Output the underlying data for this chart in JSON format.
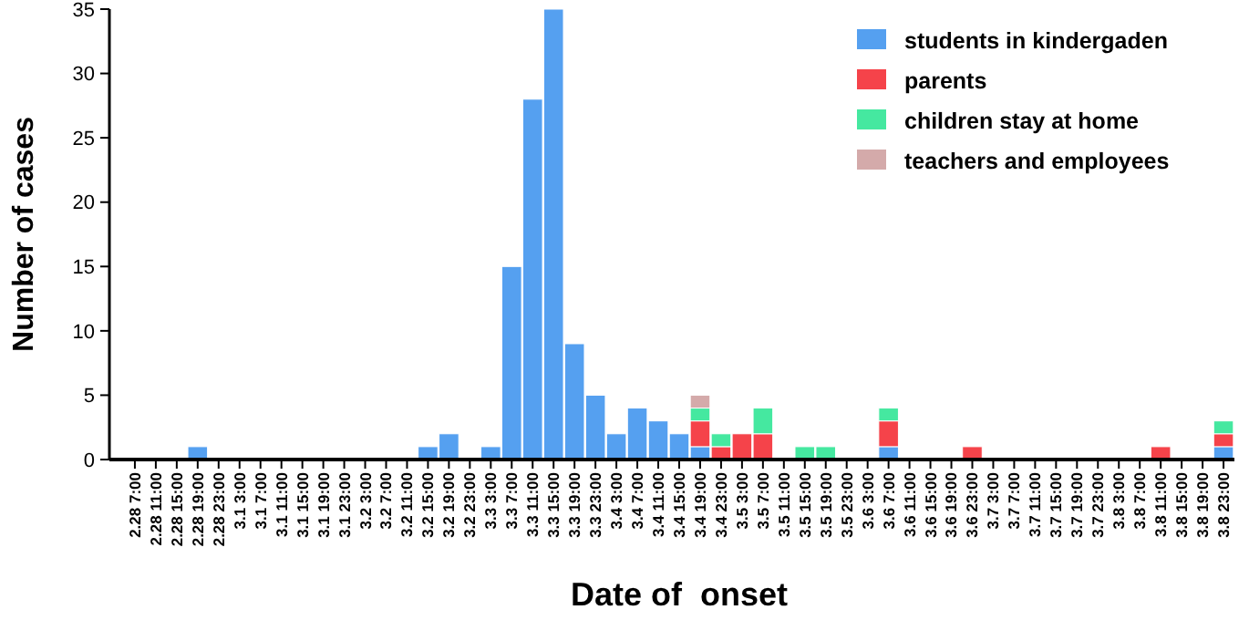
{
  "chart_data": {
    "type": "bar",
    "stacked": true,
    "xlabel": "Date of  onset",
    "ylabel": "Number of cases",
    "categories": [
      "2.28 7:00",
      "2.28 11:00",
      "2.28 15:00",
      "2.28 19:00",
      "2.28 23:00",
      "3.1 3:00",
      "3.1 7:00",
      "3.1 11:00",
      "3.1 15:00",
      "3.1 19:00",
      "3.1 23:00",
      "3.2 3:00",
      "3.2 7:00",
      "3.2 11:00",
      "3.2 15:00",
      "3.2 19:00",
      "3.2 23:00",
      "3.3 3:00",
      "3.3 7:00",
      "3.3 11:00",
      "3.3 15:00",
      "3.3 19:00",
      "3.3 23:00",
      "3.4 3:00",
      "3.4 7:00",
      "3.4 11:00",
      "3.4 15:00",
      "3.4 19:00",
      "3.4 23:00",
      "3.5 3:00",
      "3.5 7:00",
      "3.5 11:00",
      "3.5 15:00",
      "3.5 19:00",
      "3.5 23:00",
      "3.6 3:00",
      "3.6 7:00",
      "3.6 11:00",
      "3.6 15:00",
      "3.6 19:00",
      "3.6 23:00",
      "3.7 3:00",
      "3.7 7:00",
      "3.7 11:00",
      "3.7 15:00",
      "3.7 19:00",
      "3.7 23:00",
      "3.8 3:00",
      "3.8 7:00",
      "3.8 11:00",
      "3.8 15:00",
      "3.8 19:00",
      "3.8 23:00"
    ],
    "series": [
      {
        "name": "students in kindergaden",
        "color": "#55a0f0",
        "values": [
          0,
          0,
          0,
          1,
          0,
          0,
          0,
          0,
          0,
          0,
          0,
          0,
          0,
          0,
          1,
          2,
          0,
          1,
          15,
          28,
          35,
          9,
          5,
          2,
          4,
          3,
          2,
          1,
          0,
          0,
          0,
          0,
          0,
          0,
          0,
          0,
          1,
          0,
          0,
          0,
          0,
          0,
          0,
          0,
          0,
          0,
          0,
          0,
          0,
          0,
          0,
          0,
          1
        ]
      },
      {
        "name": "parents",
        "color": "#f5434a",
        "values": [
          0,
          0,
          0,
          0,
          0,
          0,
          0,
          0,
          0,
          0,
          0,
          0,
          0,
          0,
          0,
          0,
          0,
          0,
          0,
          0,
          0,
          0,
          0,
          0,
          0,
          0,
          0,
          2,
          1,
          2,
          2,
          0,
          0,
          0,
          0,
          0,
          2,
          0,
          0,
          0,
          1,
          0,
          0,
          0,
          0,
          0,
          0,
          0,
          0,
          1,
          0,
          0,
          1
        ]
      },
      {
        "name": "children stay at home",
        "color": "#45e8a0",
        "values": [
          0,
          0,
          0,
          0,
          0,
          0,
          0,
          0,
          0,
          0,
          0,
          0,
          0,
          0,
          0,
          0,
          0,
          0,
          0,
          0,
          0,
          0,
          0,
          0,
          0,
          0,
          0,
          1,
          1,
          0,
          2,
          0,
          1,
          1,
          0,
          0,
          1,
          0,
          0,
          0,
          0,
          0,
          0,
          0,
          0,
          0,
          0,
          0,
          0,
          0,
          0,
          0,
          1
        ]
      },
      {
        "name": "teachers and employees",
        "color": "#d4aaaa",
        "values": [
          0,
          0,
          0,
          0,
          0,
          0,
          0,
          0,
          0,
          0,
          0,
          0,
          0,
          0,
          0,
          0,
          0,
          0,
          0,
          0,
          0,
          0,
          0,
          0,
          0,
          0,
          0,
          1,
          0,
          0,
          0,
          0,
          0,
          0,
          0,
          0,
          0,
          0,
          0,
          0,
          0,
          0,
          0,
          0,
          0,
          0,
          0,
          0,
          0,
          0,
          0,
          0,
          0
        ]
      }
    ],
    "ylim": [
      0,
      35
    ],
    "yticks": [
      0,
      5,
      10,
      15,
      20,
      25,
      30,
      35
    ],
    "legend": "top right"
  }
}
